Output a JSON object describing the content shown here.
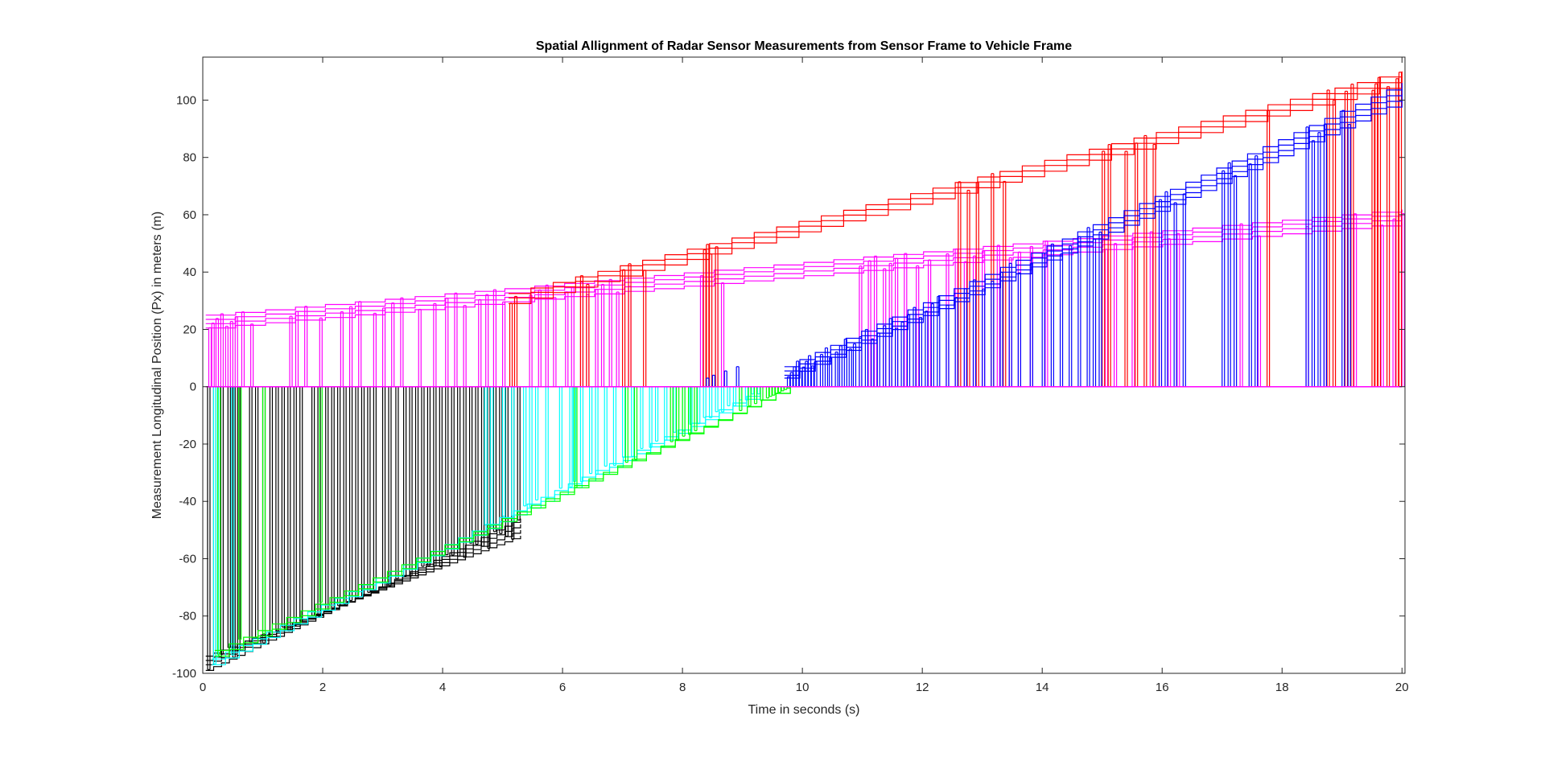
{
  "chart_data": {
    "type": "line",
    "title": "Spatial Allignment of Radar Sensor Measurements from Sensor Frame to Vehicle Frame",
    "xlabel": "Time in seconds (s)",
    "ylabel": "Measurement Longitudinal Position (Px) in meters (m)",
    "xlim": [
      0,
      20.05
    ],
    "ylim": [
      -100,
      115
    ],
    "xticks": [
      0,
      2,
      4,
      6,
      8,
      10,
      12,
      14,
      16,
      18,
      20
    ],
    "yticks": [
      -100,
      -80,
      -60,
      -40,
      -20,
      0,
      20,
      40,
      60,
      80,
      100
    ],
    "grid": false,
    "legend": "none",
    "series": [
      {
        "color": "#ff00ff",
        "t_start": 0.05,
        "t_end": 20.0,
        "x_start": [
          20.5,
          22.0,
          23.5,
          25.0
        ],
        "x_end": [
          57.0,
          58.8,
          60.4,
          61.8
        ],
        "samples": [
          0.1,
          0.15,
          0.22,
          0.3,
          0.38,
          0.46,
          0.54,
          0.65,
          0.8,
          1.45,
          1.55,
          1.7,
          1.95,
          2.3,
          2.45,
          2.6,
          2.85,
          3.0,
          3.15,
          3.3,
          3.6,
          3.85,
          4.05,
          4.2,
          4.35,
          4.6,
          4.72,
          4.85,
          5.0,
          5.45,
          5.6,
          5.72,
          5.85,
          6.05,
          6.15,
          6.3,
          6.4,
          6.55,
          6.65,
          6.78,
          6.9,
          7.1,
          8.3,
          8.55,
          8.65,
          10.95,
          11.1,
          11.2,
          11.35,
          11.45,
          11.55,
          11.7,
          11.9,
          12.1,
          12.4,
          12.55,
          12.7,
          12.85,
          13.0,
          13.25,
          13.45,
          13.6,
          13.8,
          14.05,
          15.05,
          15.2,
          15.5,
          15.8,
          15.95,
          16.1,
          16.25,
          17.3,
          17.6,
          18.4,
          18.7,
          19.2,
          19.65,
          19.85,
          20.0
        ],
        "scale": 1
      },
      {
        "color": "#ff0000",
        "t_start": 5.1,
        "t_end": 20.0,
        "x_start": [
          29.0,
          31.0,
          32.5
        ],
        "x_end": [
          106.0,
          108.0,
          110.0
        ],
        "samples": [
          5.12,
          5.2,
          6.3,
          6.4,
          7.0,
          7.1,
          7.35,
          8.35,
          8.4,
          8.45,
          8.55,
          12.6,
          12.75,
          12.9,
          13.15,
          13.35,
          15.0,
          15.1,
          15.38,
          15.55,
          15.7,
          15.85,
          17.75,
          18.75,
          18.85,
          19.05,
          19.15,
          19.5,
          19.55,
          19.6,
          19.75,
          19.9,
          19.95
        ],
        "scale": 1
      },
      {
        "color": "#0000ff",
        "t_start": 9.7,
        "t_end": 20.0,
        "x_start": [
          3.0,
          4.0,
          5.5,
          7.0
        ],
        "x_end": [
          100.0,
          102.0,
          104.0,
          106.0
        ],
        "samples": [
          8.4,
          8.5,
          8.7,
          8.9,
          9.75,
          9.8,
          9.85,
          9.9,
          9.95,
          10.0,
          10.05,
          10.1,
          10.15,
          10.2,
          10.3,
          10.38,
          10.45,
          10.55,
          10.62,
          10.7,
          10.78,
          10.85,
          10.95,
          11.05,
          11.15,
          11.25,
          11.35,
          11.45,
          11.55,
          11.65,
          11.75,
          11.85,
          11.95,
          12.05,
          12.15,
          12.25,
          12.4,
          12.55,
          12.7,
          12.85,
          13.0,
          13.15,
          13.3,
          13.45,
          13.6,
          13.8,
          14.0,
          14.15,
          14.3,
          14.45,
          14.6,
          14.75,
          14.85,
          14.95,
          15.95,
          16.05,
          16.2,
          16.35,
          17.0,
          17.1,
          17.2,
          17.45,
          17.55,
          18.4,
          18.5,
          18.6,
          18.7,
          19.0,
          19.1
        ],
        "scale": 1
      },
      {
        "color": "#000000",
        "t_start": 0.05,
        "t_end": 5.3,
        "x_start": [
          -99.0,
          -97.0,
          -95.5,
          -94.0
        ],
        "x_end": [
          -46.0,
          -48.0,
          -50.0,
          -52.0
        ],
        "samples": [
          0.08,
          0.18,
          0.3,
          0.42,
          0.5,
          0.58,
          0.78,
          0.88,
          1.0,
          1.12,
          1.22,
          1.32,
          1.42,
          1.52,
          1.62,
          1.82,
          1.92,
          2.05,
          2.15,
          2.25,
          2.35,
          2.45,
          2.55,
          2.65,
          2.75,
          2.85,
          3.0,
          3.1,
          3.22,
          3.35,
          3.45,
          3.55,
          3.65,
          3.75,
          3.85,
          3.95,
          4.05,
          4.15,
          4.25,
          4.35,
          4.45,
          4.55,
          4.65,
          4.75,
          4.85,
          4.95,
          5.05,
          5.15,
          5.25
        ],
        "scale": 1
      },
      {
        "color": "#00ffff",
        "t_start": 0.15,
        "t_end": 9.3,
        "x_start": [
          -97.0,
          -95.0
        ],
        "x_end": [
          -2.0,
          -1.0
        ],
        "samples": [
          0.18,
          0.22,
          0.48,
          4.7,
          4.8,
          5.0,
          5.15,
          5.35,
          5.45,
          5.55,
          5.72,
          5.95,
          6.12,
          6.18,
          6.3,
          6.45,
          6.55,
          6.7,
          6.85,
          7.0,
          7.15,
          7.3,
          7.45,
          7.55,
          7.7,
          7.85,
          8.0,
          8.12,
          8.25,
          8.35,
          8.45,
          8.55,
          8.65,
          8.75,
          8.85,
          8.95,
          9.05,
          9.15,
          9.25
        ],
        "scale": 1
      },
      {
        "color": "#00ff00",
        "t_start": 0.2,
        "t_end": 9.8,
        "x_start": [
          -94.0,
          -92.0
        ],
        "x_end": [
          0.0,
          0.0
        ],
        "samples": [
          0.25,
          0.6,
          1.0,
          1.95,
          6.2,
          7.05,
          7.2,
          7.8,
          7.9,
          8.0,
          8.1,
          8.2,
          8.95,
          9.1,
          9.2,
          9.3,
          9.4,
          9.45,
          9.5,
          9.55,
          9.6,
          9.65,
          9.7,
          9.75
        ],
        "scale": 1
      }
    ]
  }
}
